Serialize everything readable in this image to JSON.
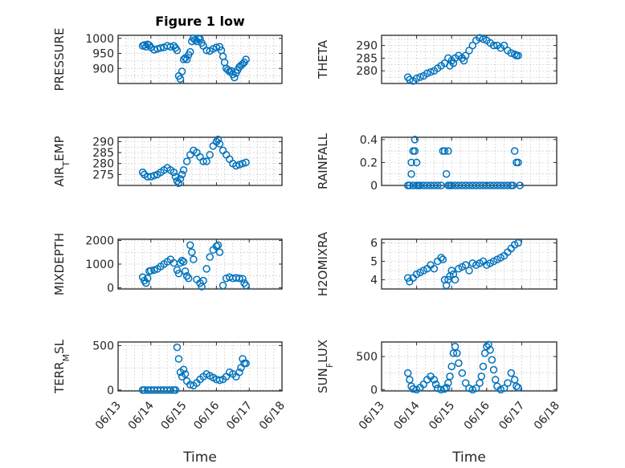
{
  "figure": {
    "title": "Figure 1 low",
    "marker_color": "#0072bd"
  },
  "chart_data": [
    {
      "type": "scatter",
      "title": "Figure 1 low",
      "ylabel": "PRESSURE",
      "xlabel": "",
      "ylim": [
        850,
        1010
      ],
      "yticks": [
        900,
        950,
        1000
      ],
      "xlim": [
        0,
        5
      ],
      "grid": true,
      "x": [
        0.75,
        0.8,
        0.85,
        0.9,
        0.95,
        1.0,
        1.1,
        1.2,
        1.3,
        1.4,
        1.5,
        1.6,
        1.7,
        1.75,
        1.8,
        1.85,
        1.9,
        1.95,
        2.0,
        2.05,
        2.1,
        2.15,
        2.2,
        2.25,
        2.3,
        2.35,
        2.4,
        2.45,
        2.5,
        2.55,
        2.6,
        2.7,
        2.8,
        2.9,
        3.0,
        3.1,
        3.15,
        3.2,
        3.25,
        3.3,
        3.35,
        3.4,
        3.45,
        3.5,
        3.55,
        3.6,
        3.65,
        3.7,
        3.75,
        3.8,
        3.85,
        3.9
      ],
      "y": [
        975,
        978,
        972,
        980,
        977,
        970,
        962,
        965,
        968,
        970,
        975,
        972,
        975,
        968,
        960,
        875,
        865,
        890,
        930,
        935,
        930,
        945,
        955,
        990,
        1000,
        995,
        990,
        1000,
        998,
        985,
        975,
        960,
        958,
        965,
        970,
        972,
        960,
        940,
        920,
        900,
        895,
        890,
        892,
        880,
        870,
        885,
        895,
        905,
        910,
        915,
        920,
        930
      ]
    },
    {
      "type": "scatter",
      "title": "",
      "ylabel": "THETA",
      "xlabel": "",
      "ylim": [
        275,
        294
      ],
      "yticks": [
        280,
        285,
        290
      ],
      "xlim": [
        0,
        5
      ],
      "grid": true,
      "x": [
        0.75,
        0.8,
        0.9,
        1.0,
        1.1,
        1.2,
        1.3,
        1.4,
        1.5,
        1.6,
        1.7,
        1.8,
        1.9,
        1.95,
        2.0,
        2.05,
        2.1,
        2.2,
        2.3,
        2.35,
        2.4,
        2.5,
        2.6,
        2.7,
        2.8,
        2.9,
        3.0,
        3.1,
        3.2,
        3.3,
        3.4,
        3.5,
        3.6,
        3.7,
        3.8,
        3.85,
        3.9
      ],
      "y": [
        277.5,
        276.5,
        276,
        277,
        277.5,
        278,
        279,
        279.5,
        280,
        281,
        282,
        283,
        285,
        282,
        284,
        283,
        285,
        286,
        285,
        284,
        286,
        288,
        290,
        292,
        293,
        292.5,
        292,
        291,
        290,
        290,
        289,
        290,
        288,
        287,
        286.5,
        286,
        286
      ]
    },
    {
      "type": "scatter",
      "title": "",
      "ylabel": "AIR_TEMP",
      "ylabel_main": "AIR",
      "ylabel_sub": "T",
      "ylabel_rest": "EMP",
      "xlabel": "",
      "ylim": [
        270,
        292
      ],
      "yticks": [
        275,
        280,
        285,
        290
      ],
      "xlim": [
        0,
        5
      ],
      "grid": true,
      "x": [
        0.75,
        0.8,
        0.9,
        1.0,
        1.1,
        1.2,
        1.3,
        1.4,
        1.5,
        1.6,
        1.7,
        1.75,
        1.8,
        1.85,
        1.9,
        1.95,
        2.0,
        2.1,
        2.2,
        2.3,
        2.4,
        2.5,
        2.6,
        2.7,
        2.8,
        2.9,
        3.0,
        3.05,
        3.1,
        3.2,
        3.3,
        3.4,
        3.5,
        3.6,
        3.7,
        3.8,
        3.9
      ],
      "y": [
        276,
        275,
        274,
        274,
        274.5,
        275,
        276,
        277,
        278,
        277,
        276,
        274,
        272,
        271,
        273,
        275,
        277,
        281,
        284,
        286,
        285,
        283,
        281,
        281,
        284,
        288,
        290,
        291,
        289,
        286,
        284,
        282,
        280,
        279,
        279.5,
        280,
        280.5
      ]
    },
    {
      "type": "scatter",
      "title": "",
      "ylabel": "RAINFALL",
      "xlabel": "",
      "ylim": [
        0,
        0.42
      ],
      "yticks": [
        0,
        0.2,
        0.4
      ],
      "xlim": [
        0,
        5
      ],
      "grid": true,
      "x": [
        0.75,
        0.8,
        0.85,
        0.85,
        0.9,
        0.9,
        0.95,
        0.95,
        1.0,
        1.0,
        1.05,
        1.1,
        1.2,
        1.3,
        1.4,
        1.5,
        1.6,
        1.7,
        1.75,
        1.8,
        1.85,
        1.9,
        1.9,
        1.95,
        2.0,
        2.1,
        2.2,
        2.3,
        2.4,
        2.5,
        2.6,
        2.7,
        2.8,
        2.9,
        3.0,
        3.1,
        3.2,
        3.3,
        3.4,
        3.5,
        3.6,
        3.7,
        3.75,
        3.8,
        3.85,
        3.9,
        3.95
      ],
      "y": [
        0,
        0,
        0.1,
        0.2,
        0.3,
        0,
        0.4,
        0.3,
        0.2,
        0,
        0,
        0,
        0,
        0,
        0,
        0,
        0,
        0,
        0.3,
        0.3,
        0.1,
        0.3,
        0,
        0,
        0,
        0,
        0,
        0,
        0,
        0,
        0,
        0,
        0,
        0,
        0,
        0,
        0,
        0,
        0,
        0,
        0,
        0,
        0,
        0.3,
        0.2,
        0.2,
        0
      ]
    },
    {
      "type": "scatter",
      "title": "",
      "ylabel": "MIXDEPTH",
      "xlabel": "",
      "ylim": [
        -50,
        2050
      ],
      "yticks": [
        0,
        1000,
        2000
      ],
      "xlim": [
        0,
        5
      ],
      "grid": true,
      "x": [
        0.75,
        0.8,
        0.85,
        0.9,
        0.95,
        1.0,
        1.1,
        1.2,
        1.3,
        1.4,
        1.5,
        1.6,
        1.7,
        1.8,
        1.85,
        1.9,
        1.95,
        2.0,
        2.05,
        2.1,
        2.15,
        2.2,
        2.25,
        2.3,
        2.4,
        2.5,
        2.55,
        2.6,
        2.7,
        2.8,
        2.9,
        3.0,
        3.05,
        3.1,
        3.2,
        3.3,
        3.4,
        3.5,
        3.6,
        3.7,
        3.8,
        3.85,
        3.9
      ],
      "y": [
        450,
        300,
        200,
        400,
        700,
        720,
        750,
        800,
        900,
        1000,
        1100,
        1200,
        1050,
        750,
        600,
        1050,
        1150,
        1100,
        700,
        500,
        400,
        1800,
        1500,
        1200,
        350,
        200,
        50,
        300,
        800,
        1300,
        1600,
        1750,
        1800,
        1500,
        100,
        400,
        450,
        400,
        420,
        400,
        380,
        200,
        100
      ]
    },
    {
      "type": "scatter",
      "title": "",
      "ylabel": "H2OMIXRA",
      "xlabel": "",
      "ylim": [
        3.5,
        6.2
      ],
      "yticks": [
        4,
        5,
        6
      ],
      "xlim": [
        0,
        5
      ],
      "grid": true,
      "x": [
        0.75,
        0.8,
        0.9,
        1.0,
        1.1,
        1.2,
        1.3,
        1.4,
        1.5,
        1.6,
        1.7,
        1.75,
        1.8,
        1.85,
        1.9,
        1.95,
        2.0,
        2.05,
        2.1,
        2.2,
        2.3,
        2.4,
        2.5,
        2.6,
        2.7,
        2.8,
        2.9,
        3.0,
        3.1,
        3.2,
        3.3,
        3.4,
        3.5,
        3.6,
        3.7,
        3.8,
        3.9
      ],
      "y": [
        4.1,
        3.9,
        4.1,
        4.3,
        4.4,
        4.5,
        4.6,
        4.8,
        4.6,
        5.0,
        5.2,
        5.1,
        4.0,
        3.7,
        4.0,
        4.2,
        4.5,
        4.3,
        4.0,
        4.6,
        4.7,
        4.8,
        4.5,
        4.9,
        4.8,
        4.9,
        5.0,
        4.8,
        4.9,
        5.0,
        5.1,
        5.2,
        5.3,
        5.5,
        5.7,
        5.9,
        6.0
      ]
    },
    {
      "type": "scatter",
      "title": "",
      "ylabel": "TERR_MSL",
      "ylabel_main": "TERR",
      "ylabel_sub": "M",
      "ylabel_rest": "SL",
      "xlabel": "Time",
      "ylim": [
        -10,
        540
      ],
      "yticks": [
        0,
        500
      ],
      "xlim": [
        0,
        5
      ],
      "grid": true,
      "xticks": [
        0,
        1,
        2,
        3,
        4,
        5
      ],
      "xticklabels": [
        "06/13",
        "06/14",
        "06/15",
        "06/16",
        "06/17",
        "06/18"
      ],
      "x": [
        0.75,
        0.8,
        0.9,
        1.0,
        1.1,
        1.2,
        1.3,
        1.4,
        1.5,
        1.6,
        1.7,
        1.75,
        1.8,
        1.85,
        1.9,
        1.95,
        2.0,
        2.05,
        2.1,
        2.2,
        2.3,
        2.4,
        2.5,
        2.6,
        2.7,
        2.8,
        2.9,
        3.0,
        3.1,
        3.2,
        3.3,
        3.4,
        3.5,
        3.6,
        3.7,
        3.75,
        3.8,
        3.85,
        3.9
      ],
      "y": [
        0,
        0,
        0,
        0,
        0,
        0,
        0,
        0,
        0,
        0,
        0,
        0,
        480,
        350,
        200,
        150,
        230,
        180,
        100,
        60,
        50,
        80,
        120,
        150,
        180,
        160,
        140,
        120,
        110,
        120,
        150,
        200,
        180,
        150,
        200,
        250,
        350,
        300,
        300
      ]
    },
    {
      "type": "scatter",
      "title": "",
      "ylabel": "SUN_FLUX",
      "ylabel_main": "SUN",
      "ylabel_sub": "F",
      "ylabel_rest": "LUX",
      "xlabel": "Time",
      "ylim": [
        -20,
        720
      ],
      "yticks": [
        0,
        500
      ],
      "xlim": [
        0,
        5
      ],
      "grid": true,
      "xticks": [
        0,
        1,
        2,
        3,
        4,
        5
      ],
      "xticklabels": [
        "06/13",
        "06/14",
        "06/15",
        "06/16",
        "06/17",
        "06/18"
      ],
      "x": [
        0.75,
        0.8,
        0.85,
        0.9,
        1.0,
        1.1,
        1.2,
        1.3,
        1.4,
        1.5,
        1.55,
        1.6,
        1.7,
        1.8,
        1.85,
        1.9,
        1.95,
        2.0,
        2.05,
        2.1,
        2.15,
        2.2,
        2.3,
        2.4,
        2.5,
        2.6,
        2.7,
        2.8,
        2.85,
        2.9,
        2.95,
        3.0,
        3.05,
        3.1,
        3.15,
        3.2,
        3.25,
        3.3,
        3.4,
        3.5,
        3.6,
        3.7,
        3.8,
        3.85,
        3.9
      ],
      "y": [
        250,
        150,
        50,
        10,
        0,
        30,
        80,
        150,
        200,
        150,
        80,
        20,
        0,
        10,
        30,
        100,
        200,
        350,
        550,
        650,
        550,
        400,
        250,
        100,
        20,
        0,
        20,
        100,
        200,
        350,
        550,
        650,
        680,
        600,
        450,
        300,
        150,
        50,
        0,
        20,
        100,
        250,
        150,
        50,
        30
      ]
    }
  ]
}
